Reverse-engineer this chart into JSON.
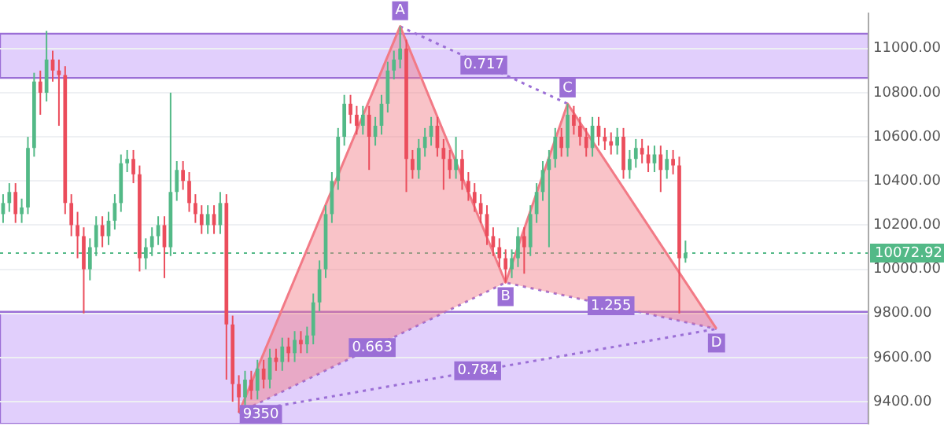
{
  "chart_data": {
    "type": "candlestick",
    "categories": [
      null,
      null,
      null,
      null,
      null,
      null,
      null,
      null,
      null,
      null,
      null,
      null,
      null,
      null,
      null,
      null,
      null,
      null,
      null,
      null,
      null,
      null,
      null,
      null,
      null,
      null,
      null,
      null,
      null,
      null,
      null,
      null,
      null,
      null,
      null,
      null,
      null,
      null,
      null,
      null,
      null,
      null,
      null,
      null,
      null,
      null,
      null,
      null,
      null,
      null,
      null,
      null,
      null,
      null,
      null,
      null,
      null,
      null,
      null,
      null,
      null,
      null,
      null,
      null,
      null,
      null,
      null,
      null,
      null,
      null,
      null,
      null,
      null,
      null,
      null,
      null,
      null,
      null,
      null,
      null,
      null,
      null,
      null,
      null,
      null,
      null,
      null,
      null,
      null,
      null,
      null,
      null,
      null,
      null,
      null,
      null,
      null,
      null,
      null,
      null,
      null,
      null,
      null,
      null,
      null,
      null,
      null,
      null,
      null,
      null,
      null,
      null,
      null,
      null,
      null,
      null,
      null,
      null,
      null,
      null,
      null,
      null,
      null,
      null,
      null,
      null,
      null,
      null,
      null,
      null,
      null,
      null,
      null,
      null,
      null,
      null,
      null,
      null,
      null,
      null
    ],
    "ohlc": [
      [
        10250,
        10340,
        10210,
        10300
      ],
      [
        10300,
        10390,
        10260,
        10350
      ],
      [
        10350,
        10390,
        10210,
        10250
      ],
      [
        10250,
        10320,
        10210,
        10280
      ],
      [
        10280,
        10600,
        10250,
        10550
      ],
      [
        10550,
        10890,
        10510,
        10850
      ],
      [
        10850,
        10900,
        10700,
        10800
      ],
      [
        10800,
        11080,
        10760,
        10950
      ],
      [
        10950,
        10990,
        10850,
        10900
      ],
      [
        10900,
        10950,
        10650,
        10880
      ],
      [
        10880,
        10920,
        10250,
        10300
      ],
      [
        10300,
        10340,
        10150,
        10200
      ],
      [
        10200,
        10260,
        10050,
        10150
      ],
      [
        10150,
        10190,
        9800,
        10000
      ],
      [
        10000,
        10140,
        9950,
        10100
      ],
      [
        10100,
        10240,
        10060,
        10200
      ],
      [
        10200,
        10240,
        10100,
        10150
      ],
      [
        10150,
        10260,
        10110,
        10220
      ],
      [
        10220,
        10340,
        10180,
        10300
      ],
      [
        10300,
        10520,
        10260,
        10480
      ],
      [
        10480,
        10540,
        10440,
        10500
      ],
      [
        10500,
        10540,
        10390,
        10430
      ],
      [
        10430,
        10470,
        9990,
        10050
      ],
      [
        10050,
        10140,
        10000,
        10100
      ],
      [
        10100,
        10190,
        10060,
        10150
      ],
      [
        10150,
        10240,
        10110,
        10200
      ],
      [
        10200,
        10240,
        9960,
        10100
      ],
      [
        10100,
        10800,
        10060,
        10350
      ],
      [
        10350,
        10490,
        10310,
        10450
      ],
      [
        10450,
        10490,
        10360,
        10400
      ],
      [
        10400,
        10440,
        10260,
        10300
      ],
      [
        10300,
        10340,
        10210,
        10250
      ],
      [
        10250,
        10290,
        10160,
        10200
      ],
      [
        10200,
        10290,
        10160,
        10250
      ],
      [
        10250,
        10290,
        10160,
        10200
      ],
      [
        10200,
        10350,
        10160,
        10300
      ],
      [
        10300,
        10340,
        9500,
        9750
      ],
      [
        9750,
        9790,
        9400,
        9480
      ],
      [
        9480,
        9520,
        9350,
        9420
      ],
      [
        9420,
        9540,
        9380,
        9500
      ],
      [
        9500,
        9540,
        9410,
        9450
      ],
      [
        9450,
        9590,
        9410,
        9550
      ],
      [
        9550,
        9590,
        9460,
        9500
      ],
      [
        9500,
        9640,
        9460,
        9600
      ],
      [
        9600,
        9640,
        9540,
        9580
      ],
      [
        9580,
        9690,
        9540,
        9650
      ],
      [
        9650,
        9690,
        9580,
        9620
      ],
      [
        9620,
        9720,
        9580,
        9680
      ],
      [
        9680,
        9720,
        9620,
        9660
      ],
      [
        9660,
        9740,
        9620,
        9700
      ],
      [
        9700,
        9890,
        9660,
        9850
      ],
      [
        9850,
        10040,
        9810,
        10000
      ],
      [
        10000,
        10290,
        9960,
        10250
      ],
      [
        10250,
        10440,
        10210,
        10400
      ],
      [
        10400,
        10640,
        10360,
        10600
      ],
      [
        10600,
        10790,
        10560,
        10750
      ],
      [
        10750,
        10790,
        10660,
        10700
      ],
      [
        10700,
        10740,
        10610,
        10650
      ],
      [
        10650,
        10740,
        10610,
        10700
      ],
      [
        10700,
        10740,
        10450,
        10600
      ],
      [
        10600,
        10690,
        10560,
        10650
      ],
      [
        10650,
        10790,
        10610,
        10750
      ],
      [
        10750,
        10940,
        10710,
        10900
      ],
      [
        10900,
        10990,
        10860,
        10950
      ],
      [
        10950,
        11100,
        10910,
        11000
      ],
      [
        11000,
        11040,
        10350,
        10500
      ],
      [
        10500,
        10540,
        10410,
        10450
      ],
      [
        10450,
        10590,
        10410,
        10550
      ],
      [
        10550,
        10640,
        10510,
        10600
      ],
      [
        10600,
        10690,
        10560,
        10650
      ],
      [
        10650,
        10690,
        10510,
        10550
      ],
      [
        10550,
        10590,
        10360,
        10500
      ],
      [
        10500,
        10540,
        10410,
        10450
      ],
      [
        10450,
        10600,
        10410,
        10500
      ],
      [
        10500,
        10540,
        10360,
        10400
      ],
      [
        10400,
        10440,
        10310,
        10350
      ],
      [
        10350,
        10390,
        10260,
        10300
      ],
      [
        10300,
        10340,
        10210,
        10250
      ],
      [
        10250,
        10290,
        10110,
        10150
      ],
      [
        10150,
        10190,
        10060,
        10100
      ],
      [
        10100,
        10140,
        10010,
        10050
      ],
      [
        10050,
        10090,
        9940,
        10000
      ],
      [
        10000,
        10090,
        9960,
        10050
      ],
      [
        10050,
        10190,
        10010,
        10150
      ],
      [
        10150,
        10190,
        9980,
        10100
      ],
      [
        10100,
        10290,
        10060,
        10250
      ],
      [
        10250,
        10390,
        10210,
        10350
      ],
      [
        10350,
        10490,
        10310,
        10450
      ],
      [
        10450,
        10540,
        10100,
        10500
      ],
      [
        10500,
        10640,
        10460,
        10600
      ],
      [
        10600,
        10640,
        10510,
        10550
      ],
      [
        10550,
        10750,
        10510,
        10700
      ],
      [
        10700,
        10740,
        10610,
        10650
      ],
      [
        10650,
        10690,
        10560,
        10600
      ],
      [
        10600,
        10640,
        10510,
        10550
      ],
      [
        10550,
        10690,
        10510,
        10650
      ],
      [
        10650,
        10690,
        10560,
        10600
      ],
      [
        10600,
        10640,
        10540,
        10580
      ],
      [
        10580,
        10620,
        10520,
        10560
      ],
      [
        10560,
        10640,
        10520,
        10600
      ],
      [
        10600,
        10640,
        10410,
        10450
      ],
      [
        10450,
        10540,
        10410,
        10500
      ],
      [
        10500,
        10590,
        10460,
        10550
      ],
      [
        10550,
        10590,
        10480,
        10520
      ],
      [
        10520,
        10560,
        10440,
        10480
      ],
      [
        10480,
        10560,
        10440,
        10520
      ],
      [
        10520,
        10560,
        10350,
        10450
      ],
      [
        10450,
        10540,
        10410,
        10500
      ],
      [
        10500,
        10540,
        10430,
        10470
      ],
      [
        10470,
        10510,
        9800,
        10050
      ],
      [
        10050,
        10130,
        10030,
        10072.92
      ],
      null,
      null,
      null,
      null,
      null,
      null,
      null,
      null,
      null,
      null,
      null,
      null,
      null,
      null,
      null,
      null,
      null,
      null,
      null,
      null,
      null,
      null,
      null,
      null,
      null,
      null,
      null,
      null,
      null
    ],
    "colors": [
      "#53b987",
      "#53b987",
      "#eb4d5c",
      "#53b987",
      "#53b987",
      "#53b987",
      "#eb4d5c",
      "#53b987",
      "#eb4d5c",
      "#eb4d5c",
      "#eb4d5c",
      "#eb4d5c",
      "#eb4d5c",
      "#eb4d5c",
      "#53b987",
      "#53b987",
      "#eb4d5c",
      "#53b987",
      "#53b987",
      "#53b987",
      "#53b987",
      "#eb4d5c",
      "#eb4d5c",
      "#53b987",
      "#53b987",
      "#53b987",
      "#eb4d5c",
      "#53b987",
      "#53b987",
      "#eb4d5c",
      "#eb4d5c",
      "#eb4d5c",
      "#eb4d5c",
      "#53b987",
      "#eb4d5c",
      "#53b987",
      "#eb4d5c",
      "#eb4d5c",
      "#eb4d5c",
      "#53b987",
      "#eb4d5c",
      "#53b987",
      "#eb4d5c",
      "#53b987",
      "#eb4d5c",
      "#53b987",
      "#eb4d5c",
      "#53b987",
      "#eb4d5c",
      "#53b987",
      "#53b987",
      "#53b987",
      "#53b987",
      "#53b987",
      "#53b987",
      "#53b987",
      "#eb4d5c",
      "#eb4d5c",
      "#53b987",
      "#eb4d5c",
      "#53b987",
      "#53b987",
      "#53b987",
      "#53b987",
      "#53b987",
      "#eb4d5c",
      "#eb4d5c",
      "#53b987",
      "#53b987",
      "#53b987",
      "#eb4d5c",
      "#eb4d5c",
      "#eb4d5c",
      "#53b987",
      "#eb4d5c",
      "#eb4d5c",
      "#eb4d5c",
      "#eb4d5c",
      "#eb4d5c",
      "#eb4d5c",
      "#eb4d5c",
      "#eb4d5c",
      "#53b987",
      "#53b987",
      "#eb4d5c",
      "#53b987",
      "#53b987",
      "#53b987",
      "#53b987",
      "#53b987",
      "#eb4d5c",
      "#53b987",
      "#eb4d5c",
      "#eb4d5c",
      "#eb4d5c",
      "#53b987",
      "#eb4d5c",
      "#eb4d5c",
      "#eb4d5c",
      "#53b987",
      "#eb4d5c",
      "#53b987",
      "#53b987",
      "#eb4d5c",
      "#eb4d5c",
      "#53b987",
      "#eb4d5c",
      "#53b987",
      "#eb4d5c",
      "#eb4d5c",
      "#53b987",
      null,
      null,
      null,
      null,
      null,
      null,
      null,
      null,
      null,
      null,
      null,
      null,
      null,
      null,
      null,
      null,
      null,
      null,
      null,
      null,
      null,
      null,
      null,
      null,
      null,
      null,
      null,
      null,
      null
    ],
    "series": [
      {
        "type": "area",
        "color": "#f27a86",
        "line_style": "solid",
        "values": [
          null,
          null,
          null,
          null,
          null,
          null,
          null,
          null,
          null,
          null,
          null,
          null,
          null,
          null,
          null,
          null,
          null,
          null,
          null,
          null,
          null,
          null,
          null,
          null,
          null,
          null,
          null,
          null,
          null,
          null,
          null,
          null,
          null,
          null,
          null,
          null,
          null,
          null,
          9350,
          null,
          null,
          null,
          null,
          null,
          null,
          null,
          null,
          null,
          null,
          null,
          null,
          null,
          null,
          null,
          null,
          null,
          null,
          null,
          null,
          null,
          null,
          null,
          null,
          null,
          11100,
          null,
          null,
          null,
          null,
          null,
          null,
          null,
          null,
          null,
          null,
          null,
          null,
          null,
          null,
          null,
          null,
          9940,
          null,
          null,
          null,
          null,
          null,
          null,
          null,
          null,
          null,
          10750,
          null,
          null,
          null,
          null,
          null,
          null,
          null,
          null,
          null,
          null,
          null,
          null,
          null,
          null,
          null,
          null,
          null,
          null,
          null,
          null,
          null,
          null,
          null,
          9730,
          null,
          null,
          null,
          null,
          null,
          null,
          null,
          null,
          null,
          null,
          null,
          null,
          null,
          null,
          null,
          null,
          null,
          null,
          null,
          null,
          null,
          null,
          null,
          null
        ],
        "value_labels": [
          null,
          null,
          null,
          null,
          null,
          null,
          null,
          null,
          null,
          null,
          null,
          null,
          null,
          null,
          null,
          null,
          null,
          null,
          null,
          null,
          null,
          null,
          null,
          null,
          null,
          null,
          null,
          null,
          null,
          null,
          null,
          null,
          null,
          null,
          null,
          null,
          null,
          null,
          "9350",
          null,
          null,
          null,
          null,
          null,
          null,
          null,
          null,
          null,
          null,
          null,
          null,
          null,
          null,
          null,
          null,
          null,
          null,
          null,
          null,
          null,
          null,
          null,
          null,
          null,
          "A",
          null,
          null,
          null,
          null,
          null,
          null,
          null,
          null,
          null,
          null,
          null,
          null,
          null,
          null,
          null,
          null,
          "B",
          null,
          null,
          null,
          null,
          null,
          null,
          null,
          null,
          null,
          "C",
          null,
          null,
          null,
          null,
          null,
          null,
          null,
          null,
          null,
          null,
          null,
          null,
          null,
          null,
          null,
          null,
          null,
          null,
          null,
          null,
          null,
          null,
          null,
          "D",
          null,
          null,
          null,
          null,
          null,
          null,
          null,
          null,
          null,
          null,
          null,
          null,
          null,
          null,
          null,
          null,
          null,
          null,
          null,
          null,
          null,
          null,
          null,
          null
        ]
      },
      {
        "type": "line",
        "color": "#9b6fd6",
        "line_style": "dotted",
        "values": [
          null,
          null,
          null,
          null,
          null,
          null,
          null,
          null,
          null,
          null,
          null,
          null,
          null,
          null,
          null,
          null,
          null,
          null,
          null,
          null,
          null,
          null,
          null,
          null,
          null,
          null,
          null,
          null,
          null,
          null,
          null,
          null,
          null,
          null,
          null,
          null,
          null,
          null,
          9350,
          null,
          null,
          null,
          null,
          null,
          null,
          null,
          null,
          null,
          null,
          null,
          null,
          null,
          null,
          null,
          null,
          null,
          null,
          null,
          null,
          null,
          null,
          null,
          null,
          null,
          null,
          null,
          null,
          null,
          null,
          null,
          null,
          null,
          null,
          null,
          null,
          null,
          null,
          null,
          null,
          null,
          null,
          9940,
          null,
          null,
          null,
          null,
          null,
          null,
          null,
          null,
          null,
          null,
          null,
          null,
          null,
          null,
          null,
          null,
          null,
          null,
          null,
          null,
          null,
          null,
          null,
          null,
          null,
          null,
          null,
          null,
          null,
          null,
          null,
          null,
          null,
          9730,
          null,
          null,
          null,
          null,
          null,
          null,
          null,
          null,
          null,
          null,
          null,
          null,
          null,
          null,
          null,
          null,
          null,
          null,
          null,
          null,
          null,
          null,
          null,
          null
        ]
      },
      {
        "type": "line",
        "color": "#9b6fd6",
        "line_style": "dotted",
        "values": [
          null,
          null,
          null,
          null,
          null,
          null,
          null,
          null,
          null,
          null,
          null,
          null,
          null,
          null,
          null,
          null,
          null,
          null,
          null,
          null,
          null,
          null,
          null,
          null,
          null,
          null,
          null,
          null,
          null,
          null,
          null,
          null,
          null,
          null,
          null,
          null,
          null,
          null,
          null,
          null,
          null,
          null,
          null,
          null,
          null,
          null,
          null,
          null,
          null,
          null,
          null,
          null,
          null,
          null,
          null,
          null,
          null,
          null,
          null,
          null,
          null,
          null,
          null,
          null,
          11100,
          null,
          null,
          null,
          null,
          null,
          null,
          null,
          null,
          null,
          null,
          null,
          null,
          null,
          null,
          null,
          null,
          null,
          null,
          null,
          null,
          null,
          null,
          null,
          null,
          null,
          null,
          10750,
          null,
          null,
          null,
          null,
          null,
          null,
          null,
          null,
          null,
          null,
          null,
          null,
          null,
          null,
          null,
          null,
          null,
          null,
          null,
          null,
          null,
          null,
          null,
          null,
          null,
          null,
          null,
          null,
          null,
          null,
          null,
          null,
          null,
          null,
          null,
          null,
          null,
          null,
          null,
          null,
          null,
          null,
          null,
          null,
          null,
          null,
          null,
          null
        ]
      },
      {
        "type": "line",
        "color": "#9b6fd6",
        "line_style": "dotted",
        "values": [
          null,
          null,
          null,
          null,
          null,
          null,
          null,
          null,
          null,
          null,
          null,
          null,
          null,
          null,
          null,
          null,
          null,
          null,
          null,
          null,
          null,
          null,
          null,
          null,
          null,
          null,
          null,
          null,
          null,
          null,
          null,
          null,
          null,
          null,
          null,
          null,
          null,
          null,
          9350,
          null,
          null,
          null,
          null,
          null,
          null,
          null,
          null,
          null,
          null,
          null,
          null,
          null,
          null,
          null,
          null,
          null,
          null,
          null,
          null,
          null,
          null,
          null,
          null,
          null,
          null,
          null,
          null,
          null,
          null,
          null,
          null,
          null,
          null,
          null,
          null,
          null,
          null,
          null,
          null,
          null,
          null,
          null,
          null,
          null,
          null,
          null,
          null,
          null,
          null,
          null,
          null,
          null,
          null,
          null,
          null,
          null,
          null,
          null,
          null,
          null,
          null,
          null,
          null,
          null,
          null,
          null,
          null,
          null,
          null,
          null,
          null,
          null,
          null,
          null,
          null,
          9730,
          null,
          null,
          null,
          null,
          null,
          null,
          null,
          null,
          null,
          null,
          null,
          null,
          null,
          null,
          null,
          null,
          null,
          null,
          null,
          null,
          null,
          null,
          null,
          null
        ]
      }
    ],
    "annotations": [
      "0.663",
      "1.255",
      "0.717",
      "0.784"
    ],
    "bands": [
      {
        "axis": "y",
        "from": 10867,
        "to": 11067,
        "color": "#c9a8fa"
      },
      {
        "axis": "y",
        "from": 9300,
        "to": 9807,
        "color": "#c9a8fa"
      }
    ],
    "ref_lines": [
      {
        "axis": "y",
        "value": 10072.92,
        "label": "10072.92",
        "color": "#53b987",
        "line_style": "dotted"
      }
    ],
    "ylim": [
      9300,
      11160
    ],
    "yticks": [
      {
        "value": 9400,
        "label": "9400.00"
      },
      {
        "value": 9600,
        "label": "9600.00"
      },
      {
        "value": 9800,
        "label": "9800.00"
      },
      {
        "value": 10000,
        "label": "10000.00"
      },
      {
        "value": 10200,
        "label": "10200.00"
      },
      {
        "value": 10400,
        "label": "10400.00"
      },
      {
        "value": 10600,
        "label": "10600.00"
      },
      {
        "value": 10800,
        "label": "10800.00"
      },
      {
        "value": 11000,
        "label": "11000.00"
      }
    ],
    "grid": "y",
    "legend": false,
    "tick_labels": "y"
  }
}
